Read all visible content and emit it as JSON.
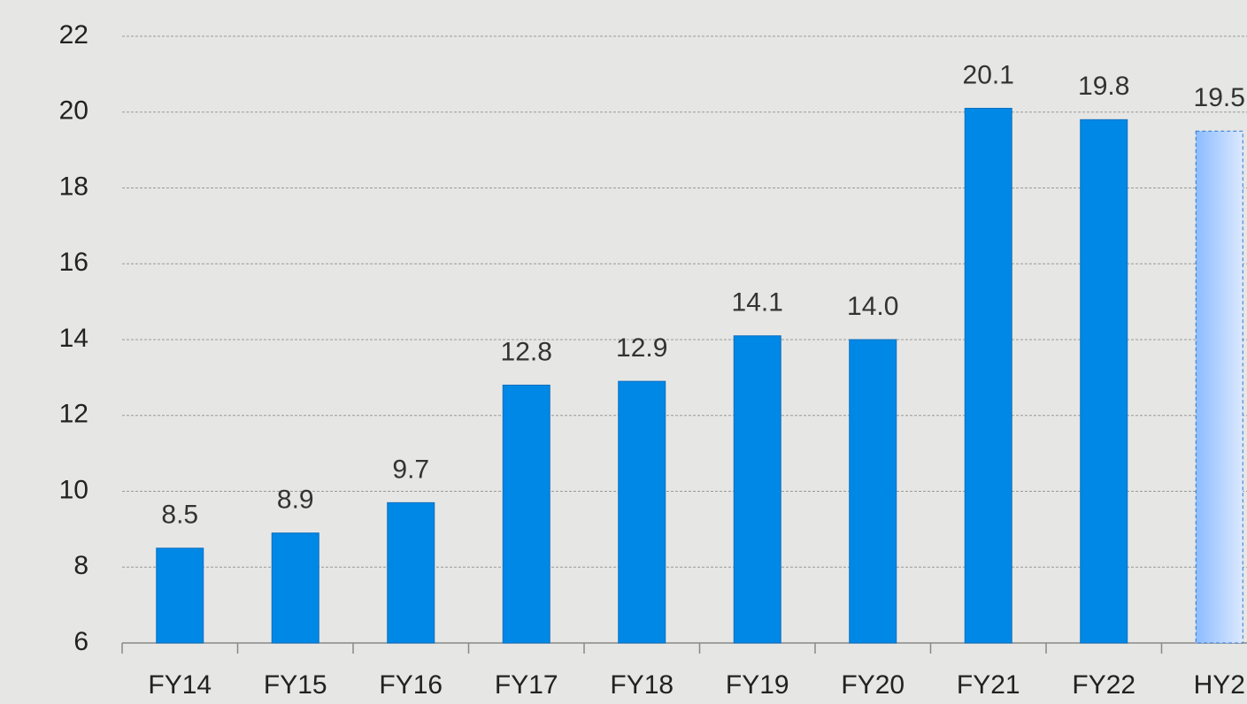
{
  "chart_data": {
    "type": "bar",
    "categories": [
      "FY14",
      "FY15",
      "FY16",
      "FY17",
      "FY18",
      "FY19",
      "FY20",
      "FY21",
      "FY22",
      "HY2"
    ],
    "values": [
      8.5,
      8.9,
      9.7,
      12.8,
      12.9,
      14.1,
      14.0,
      20.1,
      19.8,
      19.5
    ],
    "value_labels": [
      "8.5",
      "8.9",
      "9.7",
      "12.8",
      "12.9",
      "14.1",
      "14.0",
      "20.1",
      "19.8",
      "19.5"
    ],
    "color": "#0088e6",
    "colors": [
      "#0088e6",
      "#0088e6",
      "#0088e6",
      "#0088e6",
      "#0088e6",
      "#0088e6",
      "#0088e6",
      "#0088e6",
      "#0088e6",
      "#a9cdfb"
    ],
    "ylim": [
      6,
      22
    ],
    "yticks": [
      6,
      8,
      10,
      12,
      14,
      16,
      18,
      20,
      22
    ],
    "grid": true
  }
}
